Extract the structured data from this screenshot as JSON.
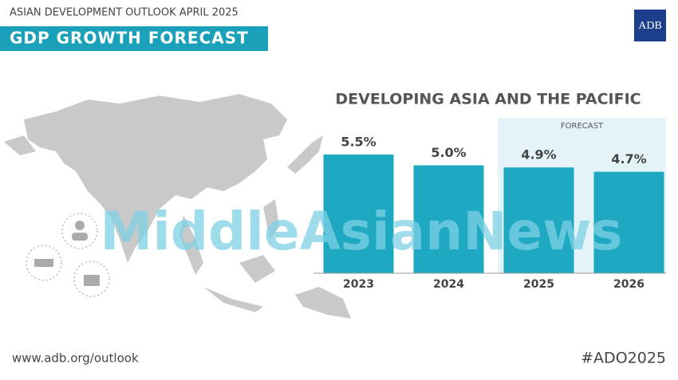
{
  "header": {
    "kicker": "ASIAN DEVELOPMENT OUTLOOK APRIL 2025",
    "title": "GDP GROWTH FORECAST",
    "logo": "ADB"
  },
  "chart_data": {
    "type": "bar",
    "title": "DEVELOPING ASIA AND THE PACIFIC",
    "forecast_label": "FORECAST",
    "categories": [
      "2023",
      "2024",
      "2025",
      "2026"
    ],
    "values": [
      5.5,
      5.0,
      4.9,
      4.7
    ],
    "value_labels": [
      "5.5%",
      "5.0%",
      "4.9%",
      "4.7%"
    ],
    "color": "#1ea8c1"
  },
  "watermark": "MiddleAsianNews",
  "footer": {
    "url": "www.adb.org/outlook",
    "hashtag": "#ADO2025"
  }
}
